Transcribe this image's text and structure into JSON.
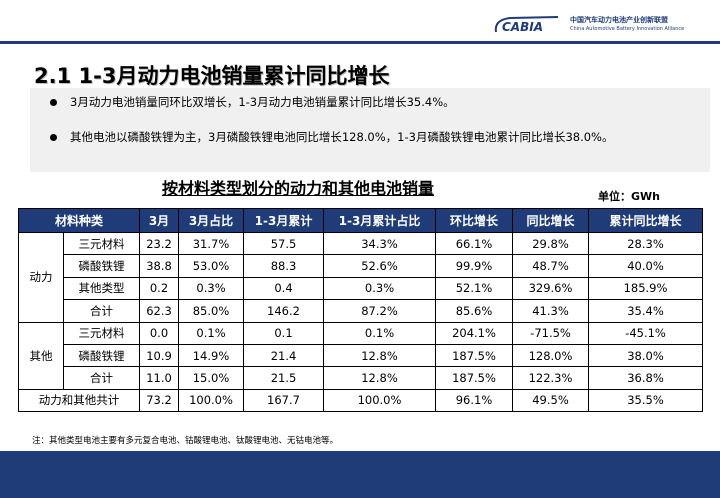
{
  "header": {
    "logo_text": "CABIA",
    "org_cn": "中国汽车动力电池产业创新联盟",
    "org_en": "China Automotive Battery Innovation Alliance",
    "brand_color": "#1f3b78"
  },
  "title": "2.1 1-3月动力电池销量累计同比增长",
  "bullets": [
    "3月动力电池销量同环比双增长，1-3月动力电池销量累计同比增长35.4%。",
    "其他电池以磷酸铁锂为主，3月磷酸铁锂电池同比增长128.0%，1-3月磷酸铁锂电池累计同比增长38.0%。"
  ],
  "table_title": "按材料类型划分的动力和其他电池销量",
  "unit": "单位：GWh",
  "table": {
    "headers": [
      "材料种类",
      "3月",
      "3月占比",
      "1-3月累计",
      "1-3月累计占比",
      "环比增长",
      "同比增长",
      "累计同比增长"
    ],
    "groups": [
      {
        "name": "动力",
        "rows": [
          {
            "type": "三元材料",
            "cells": [
              "23.2",
              "31.7%",
              "57.5",
              "34.3%",
              "66.1%",
              "29.8%",
              "28.3%"
            ]
          },
          {
            "type": "磷酸铁锂",
            "cells": [
              "38.8",
              "53.0%",
              "88.3",
              "52.6%",
              "99.9%",
              "48.7%",
              "40.0%"
            ]
          },
          {
            "type": "其他类型",
            "cells": [
              "0.2",
              "0.3%",
              "0.4",
              "0.3%",
              "52.1%",
              "329.6%",
              "185.9%"
            ]
          },
          {
            "type": "合计",
            "cells": [
              "62.3",
              "85.0%",
              "146.2",
              "87.2%",
              "85.6%",
              "41.3%",
              "35.4%"
            ]
          }
        ]
      },
      {
        "name": "其他",
        "rows": [
          {
            "type": "三元材料",
            "cells": [
              "0.0",
              "0.1%",
              "0.1",
              "0.1%",
              "204.1%",
              "-71.5%",
              "-45.1%"
            ]
          },
          {
            "type": "磷酸铁锂",
            "cells": [
              "10.9",
              "14.9%",
              "21.4",
              "12.8%",
              "187.5%",
              "128.0%",
              "38.0%"
            ]
          },
          {
            "type": "合计",
            "cells": [
              "11.0",
              "15.0%",
              "21.5",
              "12.8%",
              "187.5%",
              "122.3%",
              "36.8%"
            ]
          }
        ]
      }
    ],
    "total_row": {
      "label": "动力和其他共计",
      "cells": [
        "73.2",
        "100.0%",
        "167.7",
        "100.0%",
        "96.1%",
        "49.5%",
        "35.5%"
      ]
    }
  },
  "footnote": "注：其他类型电池主要有多元复合电池、钴酸锂电池、钛酸锂电池、无钴电池等。"
}
